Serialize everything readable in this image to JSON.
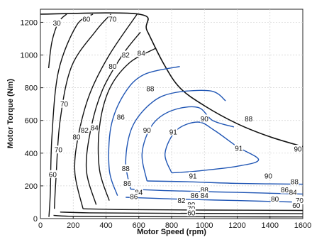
{
  "chart_data": {
    "type": "contour",
    "title": "",
    "xlabel": "Motor Speed (rpm)",
    "ylabel": "Motor Torque (Nm)",
    "xlim": [
      0,
      1600
    ],
    "ylim": [
      0,
      1280
    ],
    "xticks": [
      0,
      200,
      400,
      600,
      800,
      1000,
      1200,
      1400,
      1600
    ],
    "yticks": [
      0,
      200,
      400,
      600,
      800,
      1000,
      1200
    ],
    "grid": true,
    "colors": {
      "outer": "#111111",
      "inner": "#1f55b4",
      "grid": "#d0d0d0"
    },
    "envelope": [
      [
        0,
        1250
      ],
      [
        600,
        1250
      ],
      [
        650,
        1150
      ],
      [
        750,
        950
      ],
      [
        850,
        800
      ],
      [
        1000,
        690
      ],
      [
        1200,
        580
      ],
      [
        1400,
        500
      ],
      [
        1600,
        440
      ]
    ],
    "levels": [
      {
        "label": "30",
        "color": "#111111",
        "points": [
          [
            50,
            920
          ],
          [
            70,
            1080
          ],
          [
            110,
            1200
          ],
          [
            160,
            1250
          ]
        ],
        "label_at": [
          100,
          1195
        ]
      },
      {
        "label": "60",
        "color": "#111111",
        "points": [
          [
            52,
            10
          ],
          [
            60,
            150
          ],
          [
            70,
            500
          ],
          [
            110,
            900
          ],
          [
            220,
            1180
          ],
          [
            320,
            1250
          ]
        ],
        "label_at": [
          75,
          270
        ]
      },
      {
        "label": "60",
        "color": "#111111",
        "points": [
          [
            80,
            20
          ],
          [
            150,
            15
          ],
          [
            400,
            12
          ],
          [
            1600,
            10
          ]
        ],
        "label_at": [
          800,
          16
        ]
      },
      {
        "label": "70",
        "color": "#111111",
        "points": [
          [
            85,
            60
          ],
          [
            95,
            250
          ],
          [
            120,
            600
          ],
          [
            190,
            930
          ],
          [
            340,
            1150
          ],
          [
            430,
            1250
          ]
        ],
        "label_at": [
          245,
          880
        ]
      },
      {
        "label": "70",
        "color": "#111111",
        "points": [
          [
            120,
            40
          ],
          [
            300,
            35
          ],
          [
            800,
            32
          ],
          [
            1600,
            30
          ]
        ],
        "label_at": [
          1560,
          35
        ]
      },
      {
        "label": "80",
        "color": "#111111",
        "points": [
          [
            260,
            60
          ],
          [
            210,
            280
          ],
          [
            230,
            500
          ],
          [
            300,
            760
          ],
          [
            420,
            1000
          ],
          [
            590,
            1250
          ]
        ],
        "label_at": [
          490,
          1240
        ]
      },
      {
        "label": "80",
        "color": "#111111",
        "points": [
          [
            260,
            60
          ],
          [
            500,
            55
          ],
          [
            1000,
            52
          ],
          [
            1600,
            50
          ]
        ],
        "label_at": [
          1560,
          55
        ]
      },
      {
        "label": "82",
        "color": "#111111",
        "points": [
          [
            340,
            85
          ],
          [
            280,
            300
          ],
          [
            310,
            560
          ],
          [
            380,
            790
          ],
          [
            500,
            1000
          ],
          [
            610,
            1140
          ]
        ],
        "label_at": [
          400,
          505
        ]
      },
      {
        "label": "84",
        "color": "#111111",
        "points": [
          [
            420,
            110
          ],
          [
            360,
            300
          ],
          [
            360,
            560
          ],
          [
            420,
            790
          ],
          [
            540,
            950
          ],
          [
            700,
            1040
          ]
        ],
        "label_at": [
          560,
          970
        ]
      },
      {
        "label": "86",
        "color": "#1f55b4",
        "points": [
          [
            470,
            140
          ],
          [
            420,
            300
          ],
          [
            430,
            560
          ],
          [
            510,
            760
          ],
          [
            630,
            880
          ],
          [
            850,
            930
          ]
        ],
        "label_at": [
          700,
          930
        ]
      },
      {
        "label": "86",
        "color": "#1f55b4",
        "points": [
          [
            520,
            130
          ],
          [
            800,
            120
          ],
          [
            1200,
            110
          ],
          [
            1600,
            100
          ]
        ],
        "label_at": [
          1560,
          115
        ]
      },
      {
        "label": "88",
        "color": "#1f55b4",
        "points": [
          [
            550,
            180
          ],
          [
            520,
            350
          ],
          [
            560,
            560
          ],
          [
            680,
            710
          ],
          [
            820,
            770
          ],
          [
            1040,
            780
          ],
          [
            1130,
            720
          ]
        ],
        "label_at": [
          820,
          770
        ]
      },
      {
        "label": "88",
        "color": "#1f55b4",
        "points": [
          [
            550,
            180
          ],
          [
            800,
            170
          ],
          [
            1200,
            160
          ],
          [
            1600,
            150
          ]
        ],
        "label_at": [
          1560,
          160
        ]
      },
      {
        "label": "90",
        "color": "#1f55b4",
        "points": [
          [
            650,
            230
          ],
          [
            620,
            400
          ],
          [
            680,
            570
          ],
          [
            800,
            660
          ],
          [
            960,
            680
          ],
          [
            1050,
            600
          ],
          [
            1180,
            560
          ]
        ],
        "label_at": [
          960,
          680
        ]
      },
      {
        "label": "90",
        "color": "#1f55b4",
        "points": [
          [
            650,
            230
          ],
          [
            900,
            225
          ],
          [
            1200,
            215
          ],
          [
            1600,
            210
          ]
        ],
        "label_at": [
          1270,
          430
        ]
      },
      {
        "label": "91",
        "color": "#1f55b4",
        "points": [
          [
            800,
            280
          ],
          [
            760,
            400
          ],
          [
            830,
            540
          ],
          [
            960,
            590
          ],
          [
            1060,
            540
          ],
          [
            1200,
            440
          ],
          [
            1330,
            360
          ],
          [
            1200,
            320
          ],
          [
            950,
            290
          ],
          [
            800,
            280
          ]
        ],
        "label_at": [
          1270,
          430
        ]
      }
    ],
    "contour_labels": [
      {
        "text": "30",
        "x": 100,
        "y": 1195
      },
      {
        "text": "60",
        "x": 280,
        "y": 1220
      },
      {
        "text": "70",
        "x": 440,
        "y": 1220
      },
      {
        "text": "60",
        "x": 75,
        "y": 270
      },
      {
        "text": "70",
        "x": 110,
        "y": 420
      },
      {
        "text": "70",
        "x": 145,
        "y": 700
      },
      {
        "text": "80",
        "x": 220,
        "y": 500
      },
      {
        "text": "82",
        "x": 270,
        "y": 540
      },
      {
        "text": "84",
        "x": 330,
        "y": 555
      },
      {
        "text": "80",
        "x": 440,
        "y": 930
      },
      {
        "text": "82",
        "x": 520,
        "y": 1000
      },
      {
        "text": "84",
        "x": 615,
        "y": 1010
      },
      {
        "text": "86",
        "x": 490,
        "y": 620
      },
      {
        "text": "88",
        "x": 670,
        "y": 795
      },
      {
        "text": "90",
        "x": 650,
        "y": 540
      },
      {
        "text": "91",
        "x": 810,
        "y": 530
      },
      {
        "text": "90",
        "x": 1000,
        "y": 610
      },
      {
        "text": "88",
        "x": 1270,
        "y": 610
      },
      {
        "text": "91",
        "x": 1210,
        "y": 430
      },
      {
        "text": "90",
        "x": 1570,
        "y": 425
      },
      {
        "text": "91",
        "x": 930,
        "y": 260
      },
      {
        "text": "90",
        "x": 1390,
        "y": 260
      },
      {
        "text": "88",
        "x": 520,
        "y": 305
      },
      {
        "text": "86",
        "x": 530,
        "y": 215
      },
      {
        "text": "84",
        "x": 600,
        "y": 160
      },
      {
        "text": "86",
        "x": 570,
        "y": 135
      },
      {
        "text": "88",
        "x": 1000,
        "y": 175
      },
      {
        "text": "86",
        "x": 940,
        "y": 140
      },
      {
        "text": "84",
        "x": 1000,
        "y": 140
      },
      {
        "text": "82",
        "x": 860,
        "y": 110
      },
      {
        "text": "80",
        "x": 920,
        "y": 85
      },
      {
        "text": "70",
        "x": 920,
        "y": 60
      },
      {
        "text": "60",
        "x": 920,
        "y": 35
      },
      {
        "text": "88",
        "x": 1550,
        "y": 225
      },
      {
        "text": "86",
        "x": 1490,
        "y": 175
      },
      {
        "text": "84",
        "x": 1540,
        "y": 160
      },
      {
        "text": "80",
        "x": 1430,
        "y": 120
      },
      {
        "text": "70",
        "x": 1580,
        "y": 110
      },
      {
        "text": "60",
        "x": 1560,
        "y": 80
      }
    ]
  }
}
